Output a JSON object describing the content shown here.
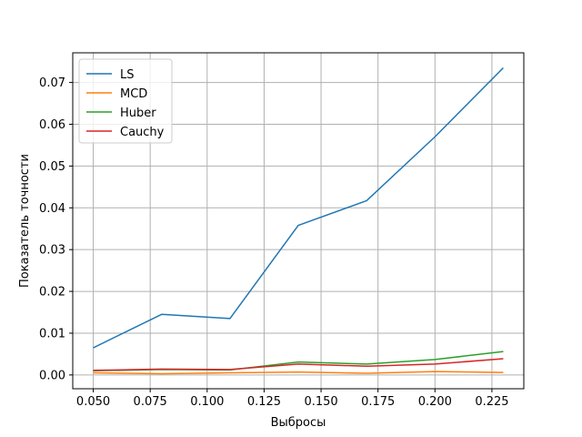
{
  "chart_data": {
    "type": "line",
    "xlabel": "Выбросы",
    "ylabel": "Показатель точности",
    "xlim": [
      0.041,
      0.239
    ],
    "ylim": [
      -0.0033,
      0.0771
    ],
    "grid": true,
    "legend_position": "top-left",
    "x": [
      0.05,
      0.08,
      0.11,
      0.14,
      0.17,
      0.2,
      0.23
    ],
    "x_ticks": [
      0.05,
      0.075,
      0.1,
      0.125,
      0.15,
      0.175,
      0.2,
      0.225
    ],
    "x_tick_labels": [
      "0.050",
      "0.075",
      "0.100",
      "0.125",
      "0.150",
      "0.175",
      "0.200",
      "0.225"
    ],
    "y_ticks": [
      0.0,
      0.01,
      0.02,
      0.03,
      0.04,
      0.05,
      0.06,
      0.07
    ],
    "y_tick_labels": [
      "0.00",
      "0.01",
      "0.02",
      "0.03",
      "0.04",
      "0.05",
      "0.06",
      "0.07"
    ],
    "series": [
      {
        "name": "LS",
        "color": "#1f77b4",
        "values": [
          0.0065,
          0.0145,
          0.0135,
          0.0358,
          0.0417,
          0.057,
          0.0735
        ]
      },
      {
        "name": "MCD",
        "color": "#ff7f0e",
        "values": [
          0.0005,
          0.0003,
          0.0005,
          0.0007,
          0.0004,
          0.0008,
          0.0006
        ]
      },
      {
        "name": "Huber",
        "color": "#2ca02c",
        "values": [
          0.001,
          0.0013,
          0.0012,
          0.0031,
          0.0026,
          0.0037,
          0.0056
        ]
      },
      {
        "name": "Cauchy",
        "color": "#d62728",
        "values": [
          0.0011,
          0.0014,
          0.0013,
          0.0026,
          0.0021,
          0.0026,
          0.0039
        ]
      }
    ]
  }
}
